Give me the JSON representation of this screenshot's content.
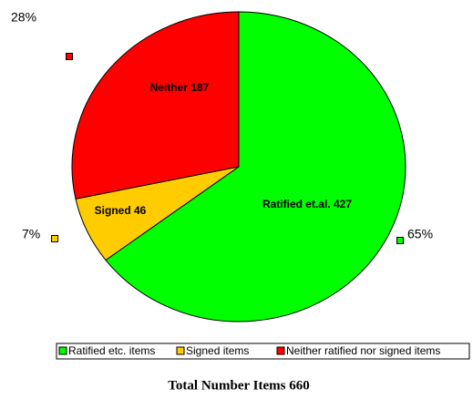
{
  "chart_data": {
    "type": "pie",
    "title": "Total Number Items 660",
    "categories": [
      "Ratified etc. items",
      "Signed items",
      "Neither ratified nor signed items"
    ],
    "values": [
      427,
      46,
      187
    ],
    "value_labels": [
      "Ratified et.al. 427",
      "Signed 46",
      "Neither 187"
    ],
    "percent_labels": [
      "65%",
      "7%",
      "28%"
    ],
    "colors": [
      "#00ff00",
      "#ffcc00",
      "#ff0000"
    ],
    "legend": "bottom"
  }
}
